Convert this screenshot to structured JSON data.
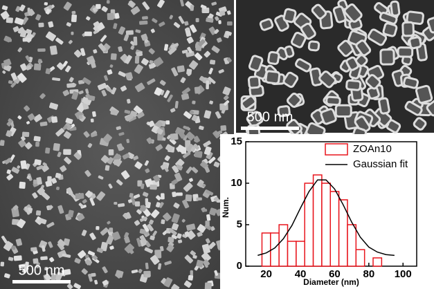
{
  "chart_data": {
    "type": "histogram",
    "x_label": "Diameter (nm)",
    "y_label": "Num.",
    "bins": [
      17.5,
      22.5,
      27.5,
      32.5,
      37.5,
      42.5,
      47.5,
      52.5,
      57.5,
      62.5,
      67.5,
      72.5,
      77.5,
      82.5,
      87.5
    ],
    "series": [
      {
        "name": "ZOAn10",
        "color": "#e8141c",
        "values": [
          4,
          4,
          5,
          3,
          3,
          10,
          11,
          10,
          9,
          8,
          5,
          2,
          0,
          1
        ]
      },
      {
        "name": "Gaussian fit",
        "type": "line",
        "color": "#000000",
        "x": [
          15,
          20,
          25,
          30,
          35,
          40,
          45,
          50,
          55,
          60,
          65,
          70,
          75,
          80,
          85,
          90,
          95
        ],
        "values": [
          1.3,
          1.6,
          2.2,
          3.3,
          4.9,
          7.0,
          9.0,
          10.4,
          10.4,
          9.3,
          7.4,
          5.3,
          3.5,
          2.3,
          1.7,
          1.4,
          1.3
        ]
      }
    ],
    "xlim": [
      8,
      108
    ],
    "xticks": [
      20,
      40,
      60,
      80,
      100
    ],
    "ylim": [
      0,
      15
    ],
    "yticks": [
      0,
      5,
      10,
      15
    ],
    "legend": "upper right"
  },
  "images": {
    "main_scale_bar": "500 nm",
    "inset_scale_bar": "500 nm"
  }
}
